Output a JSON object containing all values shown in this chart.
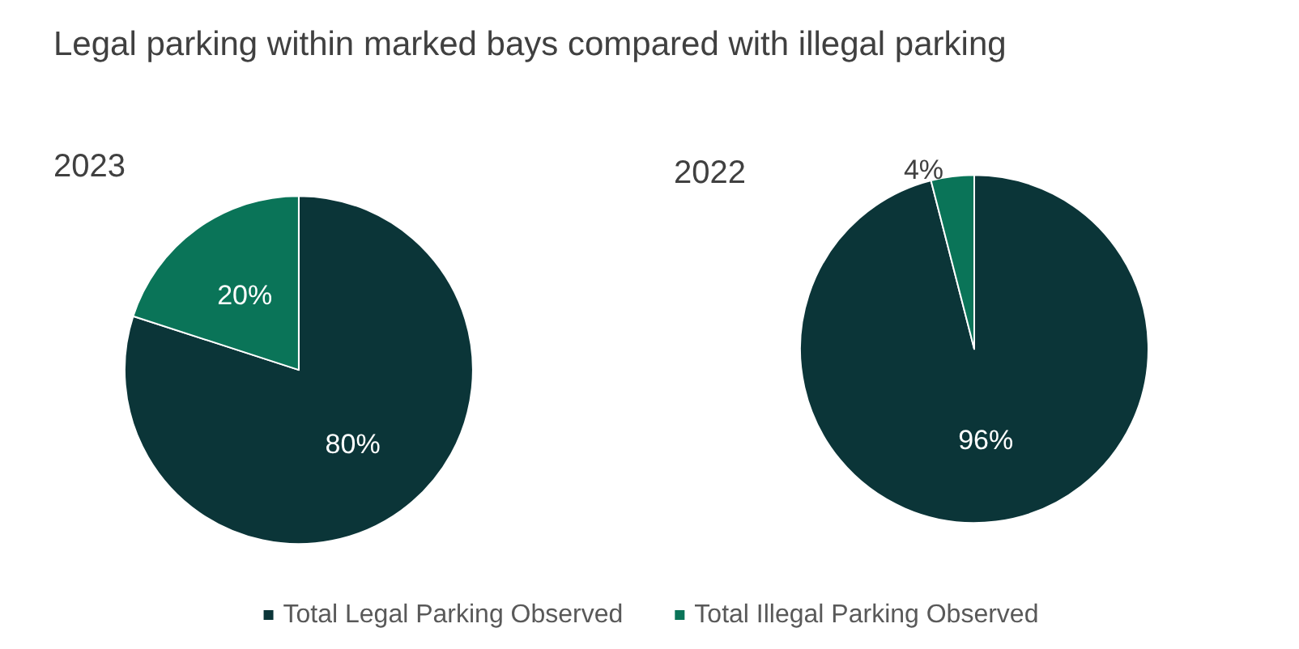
{
  "chart_data": [
    {
      "type": "pie",
      "title": "Legal parking within marked bays compared with illegal parking",
      "subtitle": "2023",
      "categories": [
        "Total Legal Parking Observed",
        "Total Illegal Parking Observed"
      ],
      "values": [
        80,
        20
      ],
      "value_labels": [
        "80%",
        "20%"
      ],
      "colors": [
        "#0b3538",
        "#0a7458"
      ],
      "legend": "bottom"
    },
    {
      "type": "pie",
      "title": "2022",
      "categories": [
        null,
        null
      ],
      "values": [
        96,
        4
      ],
      "value_labels": [
        "96%",
        "4%"
      ],
      "colors": [
        "#0b3538",
        "#0a7458"
      ]
    }
  ]
}
